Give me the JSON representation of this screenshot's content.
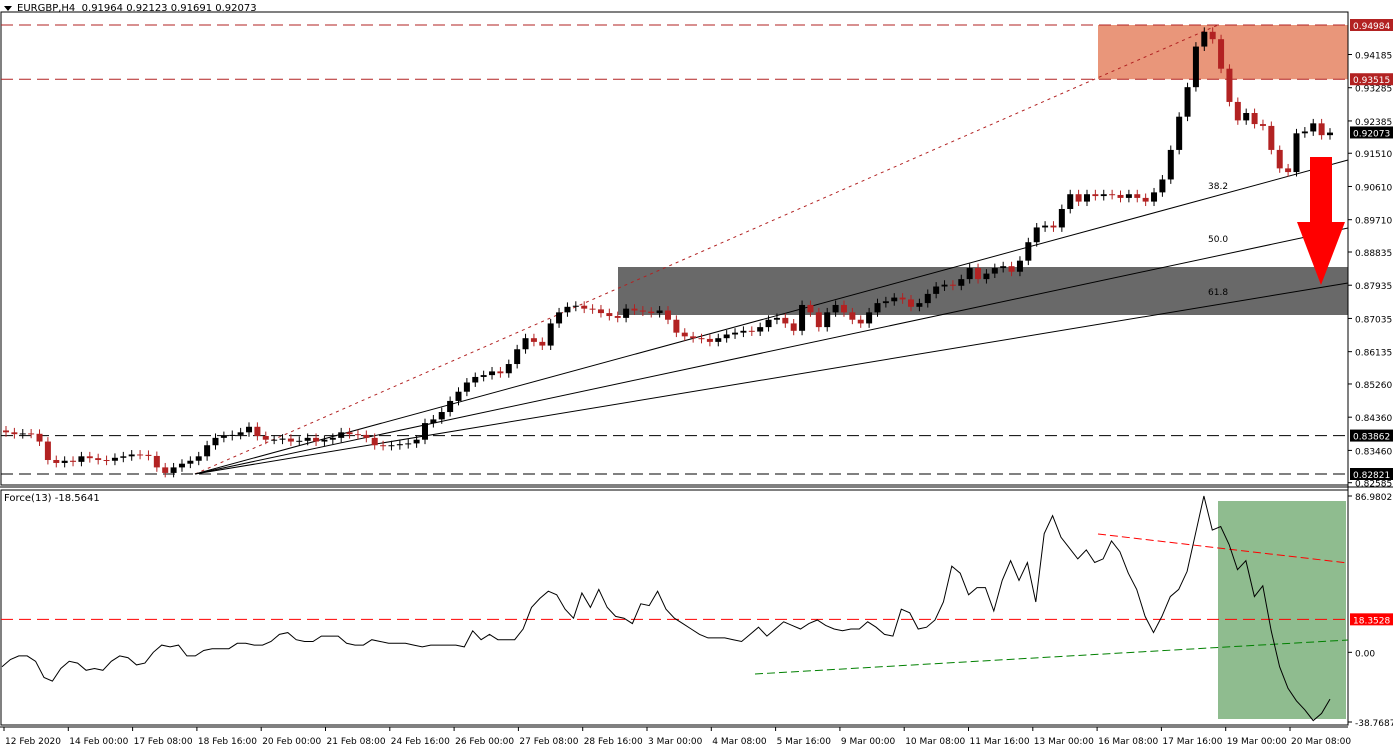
{
  "header": {
    "symbol": "EURGBP,H4",
    "ohlc": "0.91964 0.92123 0.91691 0.92073"
  },
  "indicator": {
    "title": "Force(13) -18.5641"
  },
  "colors": {
    "bull": "#000000",
    "bear": "#b22222",
    "resistance_zone": "#e9967a",
    "support_zone": "#696969",
    "arrow": "#ff0000",
    "force_zone": "#8fbc8f",
    "level_red": "#b22222",
    "level_black": "#000000",
    "force_red_line": "#ff0000",
    "force_green_line": "#008000"
  },
  "price_axis": {
    "ticks": [
      "0.94185",
      "0.93285",
      "0.92385",
      "0.91510",
      "0.90610",
      "0.89710",
      "0.88835",
      "0.87935",
      "0.87035",
      "0.86135",
      "0.85260",
      "0.84360",
      "0.83460",
      "0.82585"
    ],
    "labels": {
      "high_zone_top": "0.94984",
      "high_zone_bottom": "0.93515",
      "current": "0.92073",
      "support_upper": "0.83862",
      "support_lower": "0.82821"
    }
  },
  "force_axis": {
    "max": "86.9802",
    "level": "18.3528",
    "zero": "0.00",
    "min": "-38.7687"
  },
  "fib_labels": [
    "38.2",
    "50.0",
    "61.8"
  ],
  "time_axis": [
    "12 Feb 2020",
    "14 Feb 00:00",
    "17 Feb 08:00",
    "18 Feb 16:00",
    "20 Feb 00:00",
    "21 Feb 08:00",
    "24 Feb 16:00",
    "26 Feb 00:00",
    "27 Feb 08:00",
    "28 Feb 16:00",
    "3 Mar 00:00",
    "4 Mar 08:00",
    "5 Mar 16:00",
    "9 Mar 00:00",
    "10 Mar 08:00",
    "11 Mar 16:00",
    "13 Mar 00:00",
    "16 Mar 08:00",
    "17 Mar 16:00",
    "19 Mar 00:00",
    "20 Mar 08:00"
  ],
  "chart_data": [
    {
      "type": "candlestick",
      "title": "EURGBP,H4",
      "subtitle": "O 0.91964 H 0.92123 L 0.91691 C 0.92073",
      "ylim": [
        0.8258,
        0.9518
      ],
      "x_ticks": [
        "12 Feb 2020",
        "14 Feb 00:00",
        "17 Feb 08:00",
        "18 Feb 16:00",
        "20 Feb 00:00",
        "21 Feb 08:00",
        "24 Feb 16:00",
        "26 Feb 00:00",
        "27 Feb 08:00",
        "28 Feb 16:00",
        "3 Mar 00:00",
        "4 Mar 08:00",
        "5 Mar 16:00",
        "9 Mar 00:00",
        "10 Mar 08:00",
        "11 Mar 16:00",
        "13 Mar 00:00",
        "16 Mar 08:00",
        "17 Mar 16:00",
        "19 Mar 00:00",
        "20 Mar 08:00"
      ],
      "y_ticks": [
        0.94185,
        0.93285,
        0.92385,
        0.9151,
        0.9061,
        0.8971,
        0.88835,
        0.87935,
        0.87035,
        0.86135,
        0.8526,
        0.8436,
        0.8346,
        0.82585
      ],
      "horizontal_levels": [
        {
          "value": 0.94984,
          "style": "dashed",
          "color": "#b22222"
        },
        {
          "value": 0.93515,
          "style": "dashed",
          "color": "#b22222"
        },
        {
          "value": 0.83862,
          "style": "dashed",
          "color": "#000000"
        },
        {
          "value": 0.82821,
          "style": "dashed",
          "color": "#000000"
        }
      ],
      "zones": [
        {
          "name": "resistance",
          "from": 0.93515,
          "to": 0.94984,
          "color": "#e9967a"
        },
        {
          "name": "support",
          "from": 0.8725,
          "to": 0.8845,
          "color": "#696969"
        }
      ],
      "fibonacci_fan": {
        "origin_price": 0.82821,
        "high_price": 0.94984,
        "levels": [
          "38.2",
          "50.0",
          "61.8"
        ]
      },
      "annotation": "Red down arrow projecting decline toward 61.8 fan line / grey support zone",
      "current_price": 0.92073
    },
    {
      "type": "line",
      "title": "Force(13)",
      "last_value": -18.5641,
      "ylim": [
        -38.7687,
        86.9802
      ],
      "y_ticks": [
        86.9802,
        18.3528,
        0.0,
        -38.7687
      ],
      "horizontal_levels": [
        {
          "value": 18.3528,
          "style": "dashed",
          "color": "#ff0000"
        }
      ],
      "trendlines": [
        {
          "color": "#ff0000",
          "style": "dashed",
          "desc": "descending line connecting 16 Mar and 19 Mar peaks"
        },
        {
          "color": "#008000",
          "style": "dashed",
          "desc": "ascending support line from 5 Mar low"
        }
      ],
      "highlight_zone": {
        "from": "19 Mar 00:00",
        "to": "end",
        "color": "#8fbc8f"
      },
      "approx_values": [
        -8,
        -4,
        -2,
        -2,
        -5,
        -14,
        -16,
        -9,
        -5,
        -6,
        -10,
        -9,
        -10,
        -5,
        -2,
        -3,
        -7,
        -6,
        0,
        4,
        3,
        4,
        -2,
        -2,
        1,
        2,
        2,
        2,
        5,
        5,
        4,
        4,
        6,
        10,
        11,
        7,
        6,
        6,
        9,
        9,
        9,
        5,
        4,
        4,
        7,
        6,
        5,
        5,
        5,
        4,
        3,
        4,
        4,
        4,
        4,
        3,
        12,
        7,
        10,
        7,
        7,
        7,
        13,
        25,
        30,
        34,
        32,
        24,
        19,
        33,
        25,
        35,
        25,
        20,
        19,
        16,
        27,
        26,
        34,
        24,
        19,
        16,
        13,
        10,
        8,
        8,
        8,
        7,
        6,
        10,
        14,
        9,
        13,
        17,
        15,
        13,
        16,
        18,
        15,
        13,
        12,
        13,
        13,
        17,
        14,
        10,
        9,
        24,
        22,
        13,
        14,
        18,
        28,
        48,
        44,
        32,
        36,
        36,
        23,
        40,
        51,
        40,
        50,
        28,
        66,
        76,
        64,
        58,
        52,
        57,
        50,
        52,
        62,
        56,
        44,
        35,
        20,
        11,
        20,
        31,
        35,
        45,
        66,
        87,
        68,
        70,
        60,
        46,
        51,
        31,
        37,
        12,
        -8,
        -20,
        -27,
        -32,
        -38,
        -34,
        -26
      ]
    }
  ]
}
